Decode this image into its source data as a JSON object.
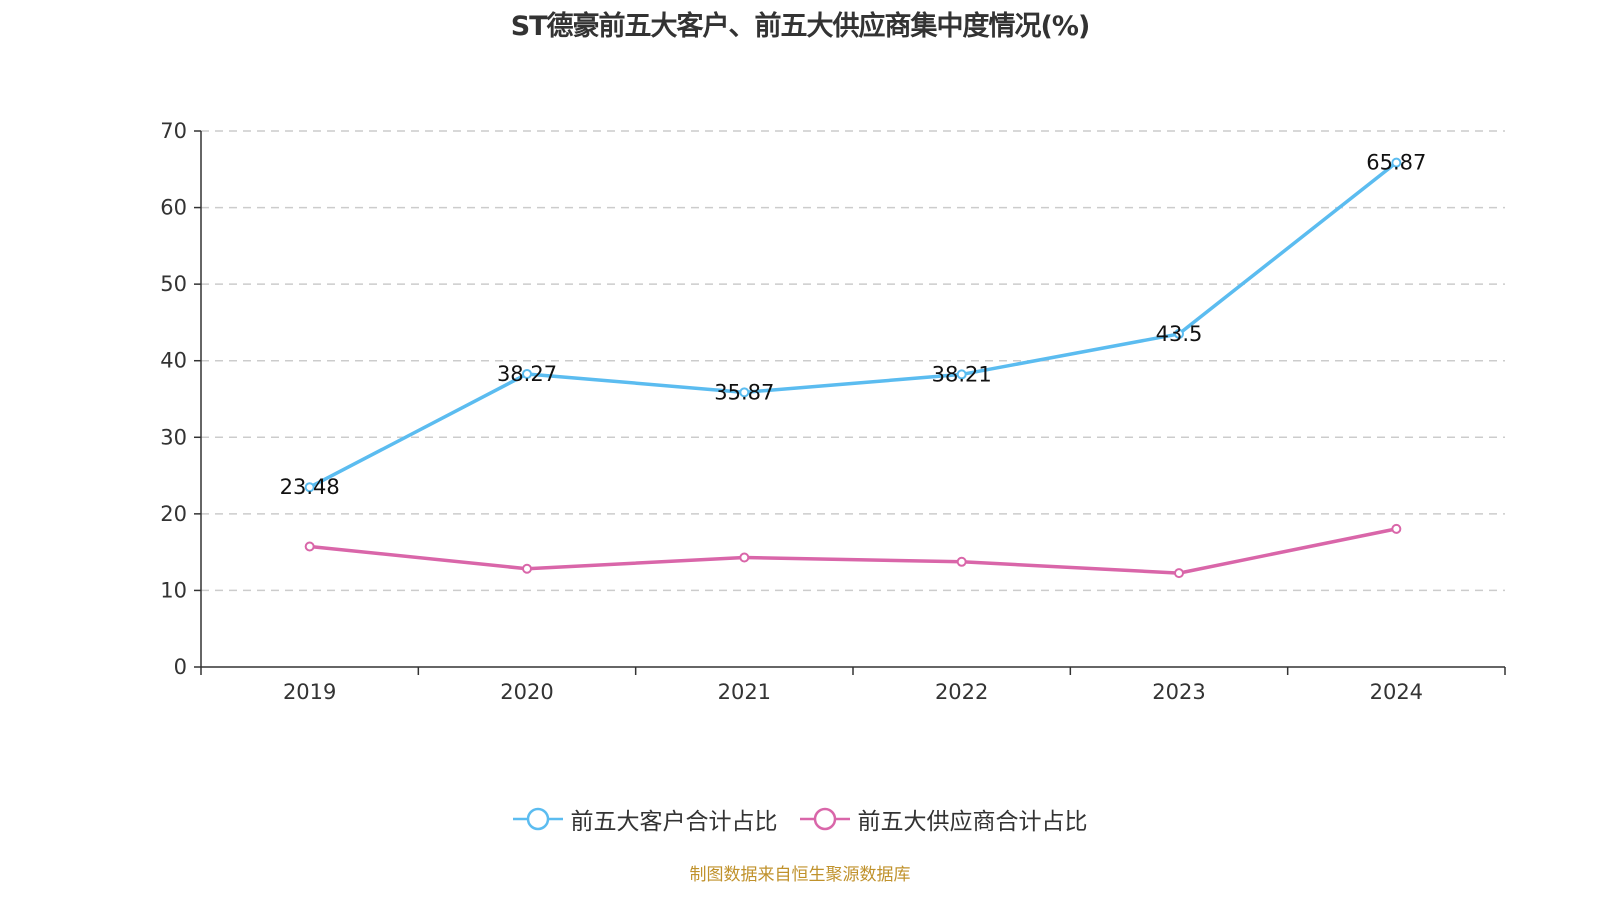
{
  "chart_data": {
    "type": "line",
    "title": "ST德豪前五大客户、前五大供应商集中度情况(%)",
    "xlabel": "",
    "ylabel": "",
    "categories": [
      "2019",
      "2020",
      "2021",
      "2022",
      "2023",
      "2024"
    ],
    "ylim": [
      0,
      70
    ],
    "yticks": [
      "0",
      "10",
      "20",
      "30",
      "40",
      "50",
      "60",
      "70"
    ],
    "grid": true,
    "legend_position": "bottom-center",
    "series": [
      {
        "name": "前五大客户合计占比",
        "color": "#5bbcf0",
        "values": [
          23.48,
          38.27,
          35.87,
          38.21,
          43.5,
          65.87
        ],
        "labels": [
          "23.48",
          "38.27",
          "35.87",
          "38.21",
          "43.5",
          "65.87"
        ],
        "show_labels": true
      },
      {
        "name": "前五大供应商合计占比",
        "color": "#d966a9",
        "values": [
          15.74,
          12.83,
          14.3,
          13.74,
          12.26,
          18.04
        ],
        "show_labels": false
      }
    ],
    "source_note": "制图数据来自恒生聚源数据库"
  }
}
